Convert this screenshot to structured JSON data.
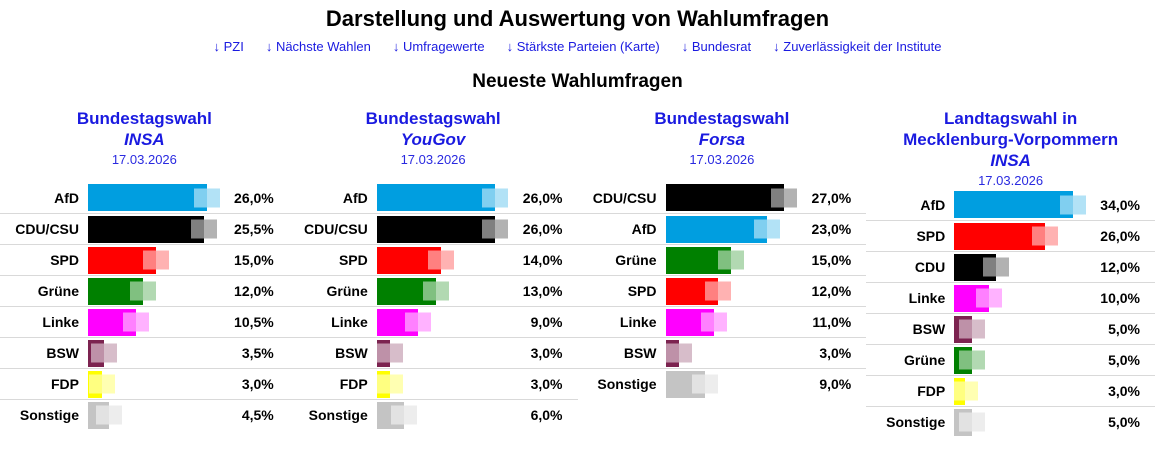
{
  "page": {
    "title": "Darstellung und Auswertung von Wahlumfragen",
    "section_heading": "Neueste Wahlumfragen"
  },
  "nav": {
    "links": [
      {
        "label": "↓ PZI"
      },
      {
        "label": "↓ Nächste Wahlen"
      },
      {
        "label": "↓ Umfragewerte"
      },
      {
        "label": "↓ Stärkste Parteien (Karte)"
      },
      {
        "label": "↓ Bundesrat"
      },
      {
        "label": "↓ Zuverlässigkeit der Institute"
      }
    ]
  },
  "colors": {
    "heading_blue": "#1a1ae0",
    "row_separator": "#d9d9d9",
    "afd": "#009EE0",
    "cdu_csu": "#000000",
    "spd": "#FF0000",
    "gruene": "#008000",
    "linke": "#FF00FF",
    "bsw": "#7C2350",
    "fdp": "#FFFF00",
    "sonstige": "#C4C4C4"
  },
  "chart_data": [
    {
      "type": "bar",
      "orientation": "horizontal",
      "title_lines": [
        "Bundestagswahl"
      ],
      "institute": "INSA",
      "date": "17.03.2026",
      "unit": "%",
      "grid": false,
      "legend": false,
      "categories": [
        "AfD",
        "CDU/CSU",
        "SPD",
        "Grüne",
        "Linke",
        "BSW",
        "FDP",
        "Sonstige"
      ],
      "values": [
        26.0,
        25.5,
        15.0,
        12.0,
        10.5,
        3.5,
        3.0,
        4.5
      ],
      "value_labels": [
        "26,0%",
        "25,5%",
        "15,0%",
        "12,0%",
        "10,5%",
        "3,5%",
        "3,0%",
        "4,5%"
      ],
      "bar_colors": [
        "#009EE0",
        "#000000",
        "#FF0000",
        "#008000",
        "#FF00FF",
        "#7C2350",
        "#FFFF00",
        "#C4C4C4"
      ]
    },
    {
      "type": "bar",
      "orientation": "horizontal",
      "title_lines": [
        "Bundestagswahl"
      ],
      "institute": "YouGov",
      "date": "17.03.2026",
      "unit": "%",
      "grid": false,
      "legend": false,
      "categories": [
        "AfD",
        "CDU/CSU",
        "SPD",
        "Grüne",
        "Linke",
        "BSW",
        "FDP",
        "Sonstige"
      ],
      "values": [
        26.0,
        26.0,
        14.0,
        13.0,
        9.0,
        3.0,
        3.0,
        6.0
      ],
      "value_labels": [
        "26,0%",
        "26,0%",
        "14,0%",
        "13,0%",
        "9,0%",
        "3,0%",
        "3,0%",
        "6,0%"
      ],
      "bar_colors": [
        "#009EE0",
        "#000000",
        "#FF0000",
        "#008000",
        "#FF00FF",
        "#7C2350",
        "#FFFF00",
        "#C4C4C4"
      ]
    },
    {
      "type": "bar",
      "orientation": "horizontal",
      "title_lines": [
        "Bundestagswahl"
      ],
      "institute": "Forsa",
      "date": "17.03.2026",
      "unit": "%",
      "grid": false,
      "legend": false,
      "categories": [
        "CDU/CSU",
        "AfD",
        "Grüne",
        "SPD",
        "Linke",
        "BSW",
        "Sonstige"
      ],
      "values": [
        27.0,
        23.0,
        15.0,
        12.0,
        11.0,
        3.0,
        9.0
      ],
      "value_labels": [
        "27,0%",
        "23,0%",
        "15,0%",
        "12,0%",
        "11,0%",
        "3,0%",
        "9,0%"
      ],
      "bar_colors": [
        "#000000",
        "#009EE0",
        "#008000",
        "#FF0000",
        "#FF00FF",
        "#7C2350",
        "#C4C4C4"
      ]
    },
    {
      "type": "bar",
      "orientation": "horizontal",
      "title_lines": [
        "Landtagswahl in",
        "Mecklenburg-Vorpommern"
      ],
      "institute": "INSA",
      "date": "17.03.2026",
      "unit": "%",
      "grid": false,
      "legend": false,
      "categories": [
        "AfD",
        "SPD",
        "CDU",
        "Linke",
        "BSW",
        "Grüne",
        "FDP",
        "Sonstige"
      ],
      "values": [
        34.0,
        26.0,
        12.0,
        10.0,
        5.0,
        5.0,
        3.0,
        5.0
      ],
      "value_labels": [
        "34,0%",
        "26,0%",
        "12,0%",
        "10,0%",
        "5,0%",
        "5,0%",
        "3,0%",
        "5,0%"
      ],
      "bar_colors": [
        "#009EE0",
        "#FF0000",
        "#000000",
        "#FF00FF",
        "#7C2350",
        "#008000",
        "#FFFF00",
        "#C4C4C4"
      ]
    }
  ]
}
